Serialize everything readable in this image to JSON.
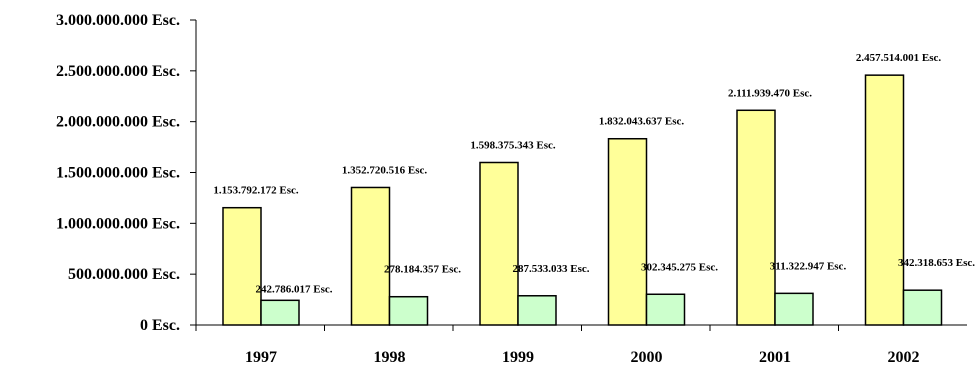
{
  "chart_data": {
    "type": "bar",
    "categories": [
      "1997",
      "1998",
      "1999",
      "2000",
      "2001",
      "2002"
    ],
    "series": [
      {
        "values": [
          1153792172,
          1352720516,
          1598375343,
          1832043637,
          2111939470,
          2457514001
        ],
        "labels": [
          "1.153.792.172 Esc.",
          "1.352.720.516 Esc.",
          "1.598.375.343 Esc.",
          "1.832.043.637 Esc.",
          "2.111.939.470 Esc.",
          "2.457.514.001 Esc."
        ],
        "color": "#FFFF99"
      },
      {
        "values": [
          242786017,
          278184357,
          287533033,
          302345275,
          311322947,
          342318653
        ],
        "labels": [
          "242.786.017 Esc.",
          "278.184.357 Esc.",
          "287.533.033 Esc.",
          "302.345.275 Esc.",
          "311.322.947 Esc.",
          "342.318.653 Esc."
        ],
        "color": "#CCFFCC"
      }
    ],
    "yticks": [
      0,
      500000000,
      1000000000,
      1500000000,
      2000000000,
      2500000000,
      3000000000
    ],
    "ytick_labels": [
      "0 Esc.",
      "500.000.000 Esc.",
      "1.000.000.000 Esc.",
      "1.500.000.000 Esc.",
      "2.000.000.000 Esc.",
      "2.500.000.000 Esc.",
      "3.000.000.000 Esc."
    ],
    "ylim": [
      0,
      3000000000
    ],
    "grid": false,
    "legend": "none",
    "title": "",
    "xlabel": "",
    "ylabel": ""
  }
}
